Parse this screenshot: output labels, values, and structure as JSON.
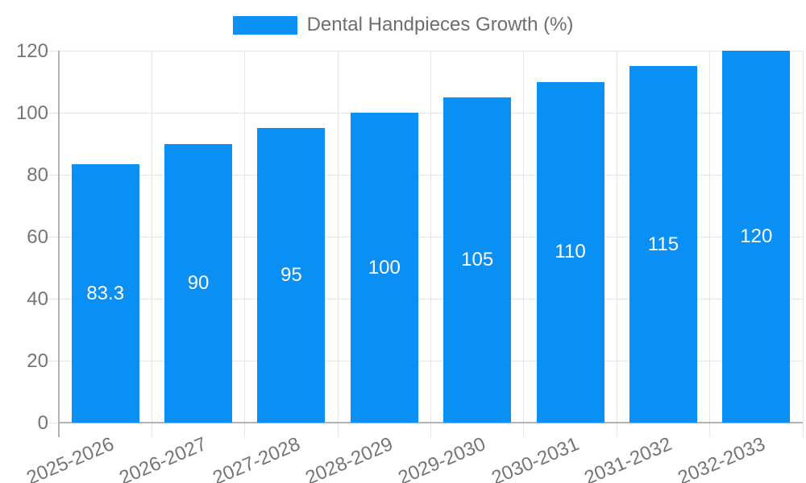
{
  "legend": {
    "label": "Dental Handpieces Growth (%)"
  },
  "colors": {
    "bar": "#0a8ff4",
    "value_label": "#ffffff",
    "tick_text": "#757575",
    "legend_text": "#6e6e6e",
    "gridline": "#e6e6e6",
    "axis_line": "#b3b3b3",
    "background": "#ffffff"
  },
  "chart_data": {
    "type": "bar",
    "title": "Dental Handpieces Growth (%)",
    "legend_position": "top",
    "categories": [
      "2025-2026",
      "2026-2027",
      "2027-2028",
      "2028-2029",
      "2029-2030",
      "2030-2031",
      "2031-2032",
      "2032-2033"
    ],
    "values": [
      83.3,
      90,
      95,
      100,
      105,
      110,
      115,
      120
    ],
    "value_labels": [
      "83.3",
      "90",
      "95",
      "100",
      "105",
      "110",
      "115",
      "120"
    ],
    "xlabel": "",
    "ylabel": "",
    "ylim": [
      0,
      120
    ],
    "yticks": [
      0,
      20,
      40,
      60,
      80,
      100,
      120
    ],
    "grid": true,
    "bar_color": "#0a8ff4",
    "value_label_color": "#ffffff"
  }
}
